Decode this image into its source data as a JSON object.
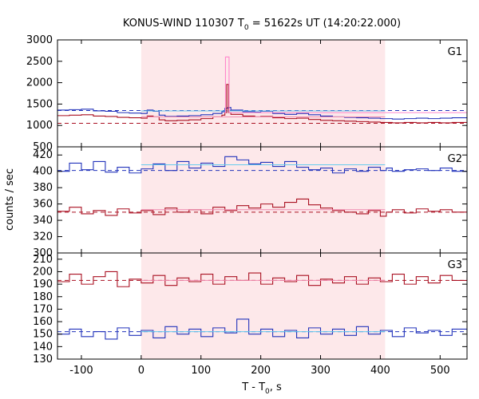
{
  "chart_data": {
    "type": "line",
    "title": {
      "prefix": "KONUS-WIND 110307 T",
      "sub": "0",
      "suffix": " = 51622s UT (14:20:22.000)"
    },
    "xlabel": {
      "prefix": "T - T",
      "sub": "0",
      "suffix": ", s"
    },
    "ylabel": "counts / sec",
    "xlim": [
      -140,
      545
    ],
    "x_ticks": [
      -100,
      0,
      100,
      200,
      300,
      400,
      500
    ],
    "x_tick_labels": [
      "-100",
      "0",
      "100",
      "200",
      "300",
      "400",
      "500"
    ],
    "highlight_interval": {
      "start": 0,
      "end": 408,
      "color": "#fde8ea"
    },
    "panels": [
      {
        "label": "G1",
        "ylim": [
          500,
          3000
        ],
        "y_ticks": [
          500,
          1000,
          1500,
          2000,
          2500,
          3000
        ],
        "y_tick_labels": [
          "500",
          "1000",
          "1500",
          "2000",
          "2500",
          "3000"
        ],
        "series": [
          {
            "color": "#2233bb",
            "background_level": 1350,
            "trend_level": 1340,
            "points": [
              [
                -140,
                1360
              ],
              [
                -120,
                1370
              ],
              [
                -100,
                1380
              ],
              [
                -80,
                1340
              ],
              [
                -60,
                1330
              ],
              [
                -40,
                1300
              ],
              [
                -20,
                1290
              ],
              [
                0,
                1280
              ],
              [
                10,
                1360
              ],
              [
                20,
                1330
              ],
              [
                30,
                1240
              ],
              [
                40,
                1210
              ],
              [
                60,
                1220
              ],
              [
                80,
                1230
              ],
              [
                100,
                1250
              ],
              [
                120,
                1280
              ],
              [
                135,
                1320
              ],
              [
                140,
                1400
              ],
              [
                145,
                1420
              ],
              [
                150,
                1360
              ],
              [
                170,
                1320
              ],
              [
                190,
                1310
              ],
              [
                200,
                1330
              ],
              [
                220,
                1280
              ],
              [
                240,
                1260
              ],
              [
                260,
                1280
              ],
              [
                280,
                1250
              ],
              [
                300,
                1220
              ],
              [
                320,
                1200
              ],
              [
                340,
                1190
              ],
              [
                360,
                1180
              ],
              [
                380,
                1170
              ],
              [
                400,
                1160
              ],
              [
                420,
                1150
              ],
              [
                440,
                1160
              ],
              [
                460,
                1170
              ],
              [
                480,
                1160
              ],
              [
                500,
                1170
              ],
              [
                520,
                1180
              ],
              [
                545,
                1180
              ]
            ]
          },
          {
            "color": "#aa1122",
            "background_level": 1050,
            "trend_level": 1200,
            "points": [
              [
                -140,
                1230
              ],
              [
                -120,
                1240
              ],
              [
                -100,
                1250
              ],
              [
                -80,
                1220
              ],
              [
                -60,
                1210
              ],
              [
                -40,
                1190
              ],
              [
                -20,
                1180
              ],
              [
                0,
                1170
              ],
              [
                10,
                1220
              ],
              [
                20,
                1200
              ],
              [
                30,
                1130
              ],
              [
                40,
                1110
              ],
              [
                60,
                1120
              ],
              [
                80,
                1130
              ],
              [
                100,
                1160
              ],
              [
                120,
                1200
              ],
              [
                135,
                1240
              ],
              [
                140,
                1300
              ],
              [
                143,
                1960
              ],
              [
                146,
                1300
              ],
              [
                150,
                1260
              ],
              [
                170,
                1220
              ],
              [
                190,
                1200
              ],
              [
                200,
                1210
              ],
              [
                220,
                1180
              ],
              [
                240,
                1160
              ],
              [
                260,
                1170
              ],
              [
                280,
                1140
              ],
              [
                300,
                1120
              ],
              [
                320,
                1110
              ],
              [
                340,
                1100
              ],
              [
                360,
                1090
              ],
              [
                380,
                1080
              ],
              [
                400,
                1070
              ],
              [
                420,
                1060
              ],
              [
                440,
                1070
              ],
              [
                460,
                1060
              ],
              [
                480,
                1070
              ],
              [
                500,
                1060
              ],
              [
                520,
                1070
              ],
              [
                545,
                1070
              ]
            ]
          },
          {
            "color": "#ff88cc",
            "background_level": null,
            "trend_level": null,
            "points": [
              [
                139,
                1300
              ],
              [
                141,
                2600
              ],
              [
                145,
                2600
              ],
              [
                147,
                1300
              ]
            ]
          }
        ]
      },
      {
        "label": "G2",
        "ylim": [
          300,
          430
        ],
        "y_ticks": [
          300,
          320,
          340,
          360,
          380,
          400,
          420
        ],
        "y_tick_labels": [
          "300",
          "320",
          "340",
          "360",
          "380",
          "400",
          "420"
        ],
        "series": [
          {
            "color": "#2233bb",
            "background_level": 401,
            "trend_level": 408,
            "points": [
              [
                -140,
                400
              ],
              [
                -120,
                410
              ],
              [
                -100,
                402
              ],
              [
                -80,
                412
              ],
              [
                -60,
                399
              ],
              [
                -40,
                405
              ],
              [
                -20,
                398
              ],
              [
                0,
                403
              ],
              [
                20,
                409
              ],
              [
                40,
                401
              ],
              [
                60,
                412
              ],
              [
                80,
                404
              ],
              [
                100,
                410
              ],
              [
                120,
                406
              ],
              [
                140,
                418
              ],
              [
                160,
                414
              ],
              [
                180,
                409
              ],
              [
                200,
                411
              ],
              [
                220,
                406
              ],
              [
                240,
                412
              ],
              [
                260,
                405
              ],
              [
                280,
                402
              ],
              [
                300,
                404
              ],
              [
                320,
                398
              ],
              [
                340,
                403
              ],
              [
                360,
                400
              ],
              [
                380,
                405
              ],
              [
                400,
                401
              ],
              [
                410,
                404
              ],
              [
                420,
                400
              ],
              [
                440,
                402
              ],
              [
                460,
                403
              ],
              [
                480,
                401
              ],
              [
                500,
                404
              ],
              [
                520,
                400
              ],
              [
                545,
                405
              ]
            ]
          },
          {
            "color": "#aa1122",
            "background_level": 350,
            "trend_level": 353,
            "points": [
              [
                -140,
                351
              ],
              [
                -120,
                356
              ],
              [
                -100,
                348
              ],
              [
                -80,
                352
              ],
              [
                -60,
                346
              ],
              [
                -40,
                354
              ],
              [
                -20,
                349
              ],
              [
                0,
                352
              ],
              [
                20,
                347
              ],
              [
                40,
                355
              ],
              [
                60,
                350
              ],
              [
                80,
                353
              ],
              [
                100,
                348
              ],
              [
                120,
                356
              ],
              [
                140,
                352
              ],
              [
                160,
                358
              ],
              [
                180,
                355
              ],
              [
                200,
                360
              ],
              [
                220,
                356
              ],
              [
                240,
                362
              ],
              [
                260,
                366
              ],
              [
                280,
                359
              ],
              [
                300,
                355
              ],
              [
                320,
                352
              ],
              [
                340,
                350
              ],
              [
                360,
                348
              ],
              [
                380,
                352
              ],
              [
                400,
                345
              ],
              [
                410,
                350
              ],
              [
                420,
                353
              ],
              [
                440,
                349
              ],
              [
                460,
                354
              ],
              [
                480,
                351
              ],
              [
                500,
                353
              ],
              [
                520,
                350
              ],
              [
                545,
                356
              ]
            ]
          }
        ]
      },
      {
        "label": "G3",
        "ylim": [
          130,
          215
        ],
        "y_ticks": [
          130,
          140,
          150,
          160,
          170,
          180,
          190,
          200,
          210
        ],
        "y_tick_labels": [
          "130",
          "140",
          "150",
          "160",
          "170",
          "180",
          "190",
          "200",
          "210"
        ],
        "series": [
          {
            "color": "#aa1122",
            "background_level": 193,
            "trend_level": 193,
            "points": [
              [
                -140,
                192
              ],
              [
                -120,
                198
              ],
              [
                -100,
                190
              ],
              [
                -80,
                196
              ],
              [
                -60,
                200
              ],
              [
                -40,
                188
              ],
              [
                -20,
                194
              ],
              [
                0,
                191
              ],
              [
                20,
                197
              ],
              [
                40,
                189
              ],
              [
                60,
                195
              ],
              [
                80,
                192
              ],
              [
                100,
                198
              ],
              [
                120,
                190
              ],
              [
                140,
                196
              ],
              [
                160,
                193
              ],
              [
                180,
                199
              ],
              [
                200,
                190
              ],
              [
                220,
                195
              ],
              [
                240,
                192
              ],
              [
                260,
                197
              ],
              [
                280,
                189
              ],
              [
                300,
                194
              ],
              [
                320,
                191
              ],
              [
                340,
                196
              ],
              [
                360,
                190
              ],
              [
                380,
                195
              ],
              [
                400,
                192
              ],
              [
                420,
                198
              ],
              [
                440,
                190
              ],
              [
                460,
                196
              ],
              [
                480,
                191
              ],
              [
                500,
                197
              ],
              [
                520,
                193
              ],
              [
                545,
                195
              ]
            ]
          },
          {
            "color": "#2233bb",
            "background_level": 152,
            "trend_level": 152,
            "points": [
              [
                -140,
                150
              ],
              [
                -120,
                154
              ],
              [
                -100,
                148
              ],
              [
                -80,
                152
              ],
              [
                -60,
                146
              ],
              [
                -40,
                155
              ],
              [
                -20,
                149
              ],
              [
                0,
                153
              ],
              [
                20,
                147
              ],
              [
                40,
                156
              ],
              [
                60,
                150
              ],
              [
                80,
                154
              ],
              [
                100,
                148
              ],
              [
                120,
                155
              ],
              [
                140,
                151
              ],
              [
                160,
                162
              ],
              [
                180,
                150
              ],
              [
                200,
                154
              ],
              [
                220,
                148
              ],
              [
                240,
                153
              ],
              [
                260,
                147
              ],
              [
                280,
                155
              ],
              [
                300,
                150
              ],
              [
                320,
                154
              ],
              [
                340,
                149
              ],
              [
                360,
                156
              ],
              [
                380,
                150
              ],
              [
                400,
                153
              ],
              [
                420,
                148
              ],
              [
                440,
                155
              ],
              [
                460,
                151
              ],
              [
                480,
                153
              ],
              [
                500,
                149
              ],
              [
                520,
                154
              ],
              [
                545,
                151
              ]
            ]
          }
        ]
      }
    ]
  }
}
